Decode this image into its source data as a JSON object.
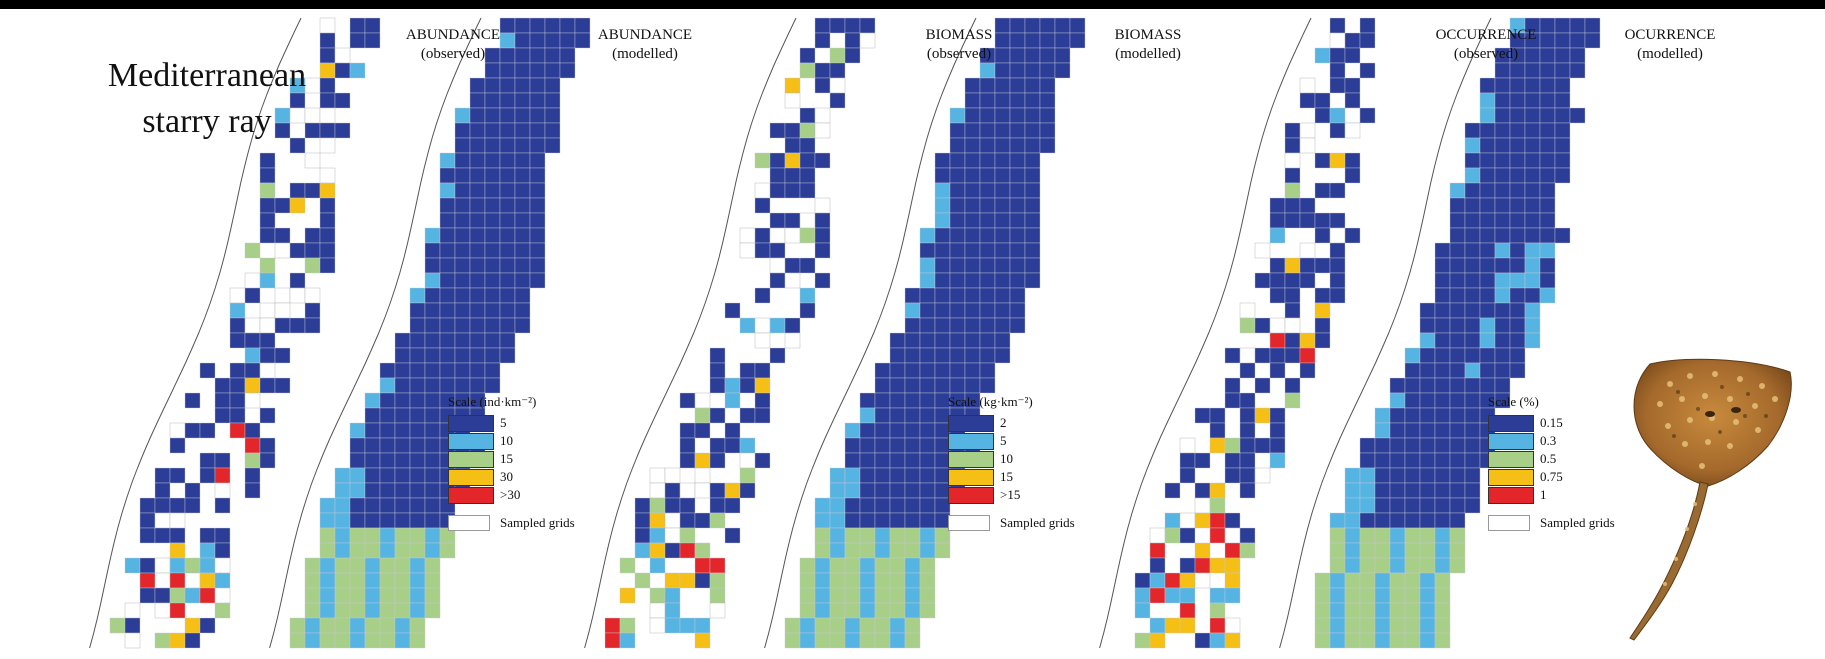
{
  "species": {
    "line1": "Mediterranean",
    "line2": "starry ray"
  },
  "colors": {
    "c1": "#2b3d96",
    "c2": "#55b4e2",
    "c3": "#a8cf88",
    "c4": "#f5bf15",
    "c5": "#e2262a",
    "grid": "#c8c8d4",
    "coast": "#555555",
    "sampled": "#aaaaaa"
  },
  "panels": [
    {
      "title": "ABUNDANCE",
      "subtitle": "(observed)",
      "type": "observed"
    },
    {
      "title": "ABUNDANCE",
      "subtitle": "(modelled)",
      "type": "modelled"
    },
    {
      "title": "BIOMASS",
      "subtitle": "(observed)",
      "type": "observed"
    },
    {
      "title": "BIOMASS",
      "subtitle": "(modelled)",
      "type": "modelled"
    },
    {
      "title": "OCCURRENCE",
      "subtitle": "(observed)",
      "type": "observed"
    },
    {
      "title": "OCURRENCE",
      "subtitle": "(modelled)",
      "type": "modelled"
    }
  ],
  "legends": [
    {
      "title": "Scale (ind·km⁻²)",
      "labels": [
        "5",
        "10",
        "15",
        "30",
        ">30"
      ],
      "sampled": "Sampled grids"
    },
    {
      "title": "Scale (kg·km⁻²)",
      "labels": [
        "2",
        "5",
        "10",
        "15",
        ">15"
      ],
      "sampled": "Sampled grids"
    },
    {
      "title": "Scale (%)",
      "labels": [
        "0.15",
        "0.3",
        "0.5",
        "0.75",
        "1"
      ],
      "sampled": "Sampled grids"
    }
  ]
}
